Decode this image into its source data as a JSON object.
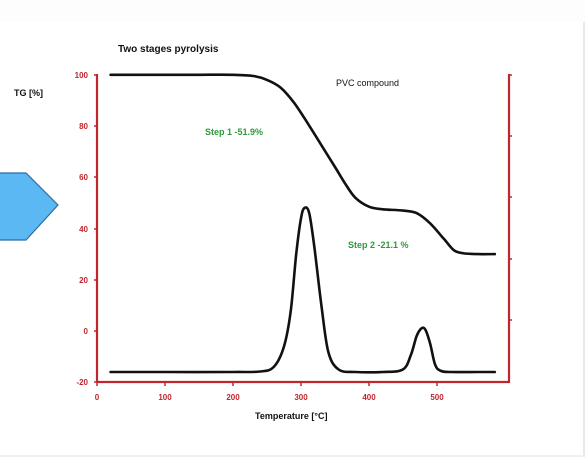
{
  "chart_data": {
    "type": "line",
    "title": "Two stages pyrolysis",
    "ylabel": "TG [%]",
    "xlabel": "Temperature [°C]",
    "xlim": [
      0,
      590
    ],
    "ylim": [
      -20,
      100
    ],
    "x_ticks": [
      "0",
      "100",
      "200",
      "300",
      "400",
      "500"
    ],
    "y_ticks": [
      "100",
      "80",
      "60",
      "40",
      "20",
      "0",
      "-20"
    ],
    "grid": false,
    "annotations": {
      "sample": "PVC compound",
      "step1": "Step 1  -51.9%",
      "step2": "Step 2  -21.1 %"
    },
    "series": [
      {
        "x": [
          20,
          50,
          100,
          150,
          200,
          230,
          250,
          270,
          290,
          310,
          330,
          350,
          365,
          380,
          400,
          420,
          450,
          470,
          490,
          510,
          525,
          540,
          560,
          585
        ],
        "y": [
          100,
          100,
          100,
          100,
          100,
          99.5,
          98,
          95,
          89,
          81,
          72.5,
          64,
          57.5,
          52,
          48.5,
          47.5,
          47,
          46,
          42,
          36,
          31.5,
          30.3,
          30,
          30
        ]
      },
      {
        "x": [
          20,
          100,
          200,
          240,
          260,
          275,
          285,
          293,
          300,
          305,
          312,
          320,
          330,
          340,
          355,
          380,
          420,
          450,
          462,
          470,
          477,
          483,
          490,
          497,
          505,
          520,
          560,
          585
        ],
        "y": [
          -16,
          -16,
          -16,
          -15.8,
          -14,
          -6,
          8,
          30,
          44,
          48,
          46,
          32,
          10,
          -8,
          -15,
          -16,
          -16,
          -15,
          -9,
          -2,
          1,
          0.5,
          -5,
          -13,
          -15.5,
          -16,
          -16,
          -16
        ]
      }
    ],
    "colors": {
      "curve": "#111111",
      "axis": "#c0272d",
      "annotation_green": "#2e9a3c",
      "arrow_fill": "#5bb8f3",
      "arrow_stroke": "#2b6ea5"
    }
  }
}
